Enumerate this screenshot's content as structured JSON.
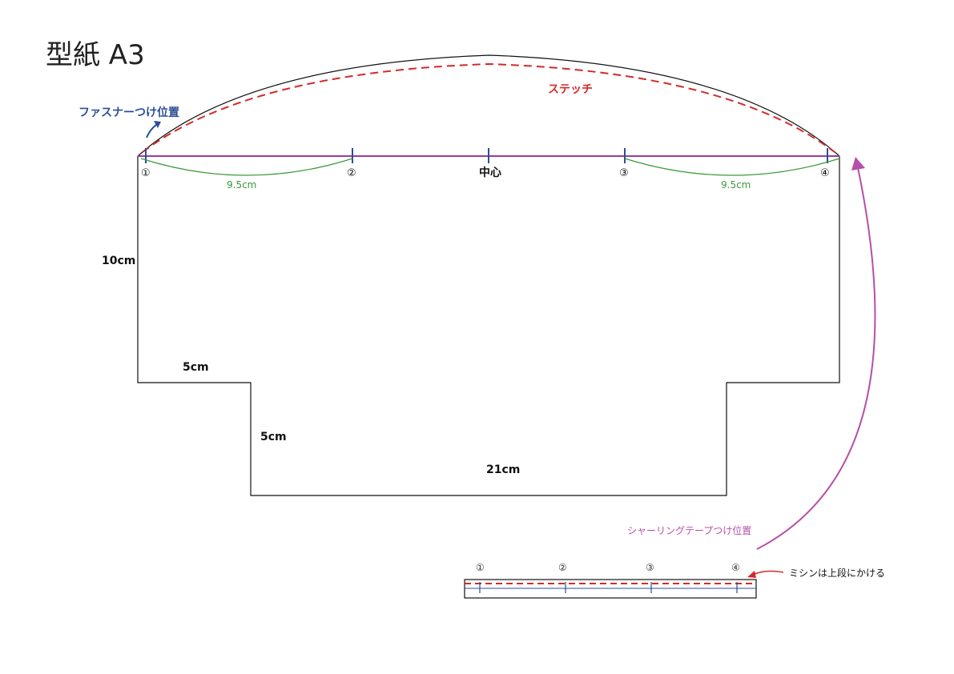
{
  "title": "型紙 A3",
  "labels": {
    "zipper_position": "ファスナーつけ位置",
    "stitch": "ステッチ",
    "center": "中心",
    "shirring_tape": "シャーリングテープつけ位置",
    "sewing_note": "ミシンは上段にかける"
  },
  "markers": [
    "①",
    "②",
    "③",
    "④"
  ],
  "measurements": {
    "left_span": "9.5cm",
    "right_span": "9.5cm",
    "height": "10cm",
    "step_width": "5cm",
    "step_height": "5cm",
    "bottom_width": "21cm"
  },
  "colors": {
    "outline": "#111111",
    "stitch": "#d42a2a",
    "zipper_line": "#9b3c9b",
    "tick": "#2b4f96",
    "span_arc": "#3a9a3a",
    "shirring": "#b64fa8"
  }
}
